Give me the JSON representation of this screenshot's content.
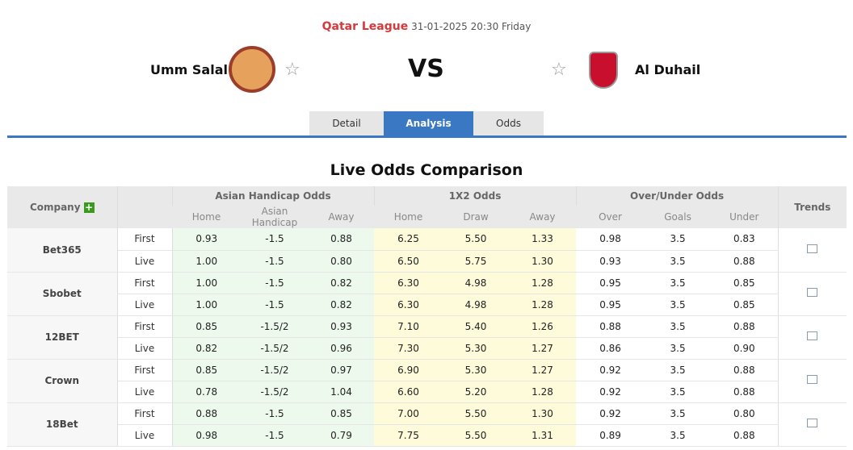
{
  "match": {
    "league": "Qatar League",
    "datetime": "31-01-2025 20:30 Friday",
    "home": "Umm Salal",
    "away": "Al Duhail",
    "vs": "VS"
  },
  "tabs": [
    {
      "label": "Detail"
    },
    {
      "label": "Analysis",
      "active": true
    },
    {
      "label": "Odds"
    }
  ],
  "section_title": "Live Odds Comparison",
  "table": {
    "headers": {
      "company": "Company",
      "ah": "Asian Handicap Odds",
      "x12": "1X2 Odds",
      "ou": "Over/Under Odds",
      "trends": "Trends"
    },
    "subheaders": [
      "Home",
      "Asian Handicap",
      "Away",
      "Home",
      "Draw",
      "Away",
      "Over",
      "Goals",
      "Under"
    ],
    "companies": [
      {
        "name": "Bet365",
        "rows": [
          [
            "First",
            "0.93",
            "-1.5",
            "0.88",
            "6.25",
            "5.50",
            "1.33",
            "0.98",
            "3.5",
            "0.83"
          ],
          [
            "Live",
            "1.00",
            "-1.5",
            "0.80",
            "6.50",
            "5.75",
            "1.30",
            "0.93",
            "3.5",
            "0.88"
          ]
        ]
      },
      {
        "name": "Sbobet",
        "rows": [
          [
            "First",
            "1.00",
            "-1.5",
            "0.82",
            "6.30",
            "4.98",
            "1.28",
            "0.95",
            "3.5",
            "0.85"
          ],
          [
            "Live",
            "1.00",
            "-1.5",
            "0.82",
            "6.30",
            "4.98",
            "1.28",
            "0.95",
            "3.5",
            "0.85"
          ]
        ]
      },
      {
        "name": "12BET",
        "rows": [
          [
            "First",
            "0.85",
            "-1.5/2",
            "0.93",
            "7.10",
            "5.40",
            "1.26",
            "0.88",
            "3.5",
            "0.88"
          ],
          [
            "Live",
            "0.82",
            "-1.5/2",
            "0.96",
            "7.30",
            "5.30",
            "1.27",
            "0.86",
            "3.5",
            "0.90"
          ]
        ]
      },
      {
        "name": "Crown",
        "rows": [
          [
            "First",
            "0.85",
            "-1.5/2",
            "0.97",
            "6.90",
            "5.30",
            "1.27",
            "0.92",
            "3.5",
            "0.88"
          ],
          [
            "Live",
            "0.78",
            "-1.5/2",
            "1.04",
            "6.60",
            "5.20",
            "1.28",
            "0.92",
            "3.5",
            "0.88"
          ]
        ]
      },
      {
        "name": "18Bet",
        "rows": [
          [
            "First",
            "0.88",
            "-1.5",
            "0.85",
            "7.00",
            "5.50",
            "1.30",
            "0.92",
            "3.5",
            "0.80"
          ],
          [
            "Live",
            "0.98",
            "-1.5",
            "0.79",
            "7.75",
            "5.50",
            "1.31",
            "0.89",
            "3.5",
            "0.88"
          ]
        ]
      }
    ]
  }
}
